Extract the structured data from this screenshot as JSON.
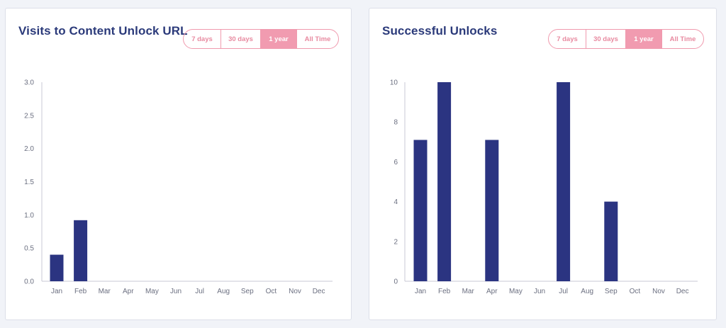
{
  "range_options": [
    "7 days",
    "30 days",
    "1 year",
    "All Time"
  ],
  "panels": [
    {
      "title": "Visits to Content Unlock URL",
      "active_range": "1 year"
    },
    {
      "title": "Successful Unlocks",
      "active_range": "1 year"
    }
  ],
  "colors": {
    "bar": "#2b3481",
    "accent": "#f19bb0",
    "title": "#2b3a7a"
  },
  "chart_data": [
    {
      "type": "bar",
      "title": "Visits to Content Unlock URL",
      "categories": [
        "Jan",
        "Feb",
        "Mar",
        "Apr",
        "May",
        "Jun",
        "Jul",
        "Aug",
        "Sep",
        "Oct",
        "Nov",
        "Dec"
      ],
      "values": [
        0.4,
        0.92,
        0,
        0,
        0,
        0,
        0,
        0,
        0,
        0,
        0,
        0
      ],
      "ylim": [
        0,
        3
      ],
      "yticks": [
        "0.0",
        "0.5",
        "1.0",
        "1.5",
        "2.0",
        "2.5",
        "3.0"
      ],
      "xlabel": "",
      "ylabel": "",
      "grid": false,
      "legend": "none"
    },
    {
      "type": "bar",
      "title": "Successful Unlocks",
      "categories": [
        "Jan",
        "Feb",
        "Mar",
        "Apr",
        "May",
        "Jun",
        "Jul",
        "Aug",
        "Sep",
        "Oct",
        "Nov",
        "Dec"
      ],
      "values": [
        7.1,
        10,
        0,
        7.1,
        0,
        0,
        10,
        0,
        4,
        0,
        0,
        0
      ],
      "ylim": [
        0,
        10
      ],
      "yticks": [
        "0",
        "2",
        "4",
        "6",
        "8",
        "10"
      ],
      "xlabel": "",
      "ylabel": "",
      "grid": false,
      "legend": "none"
    }
  ]
}
